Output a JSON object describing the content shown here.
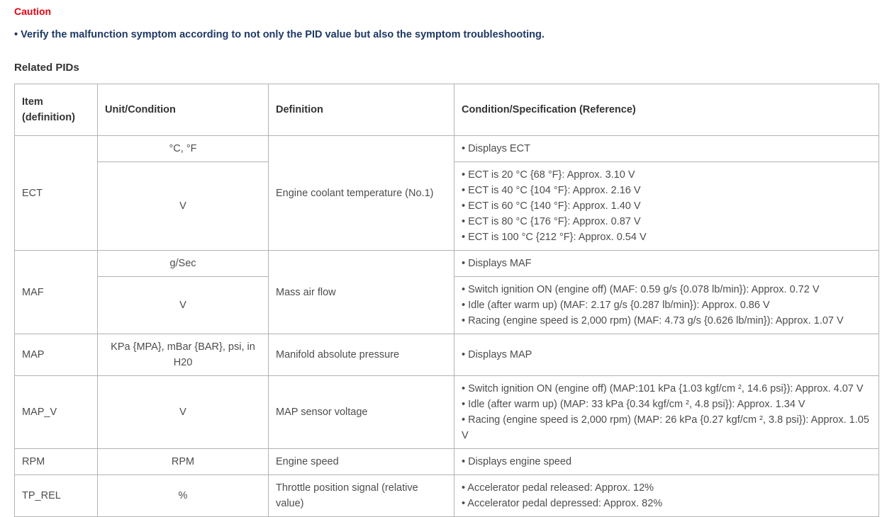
{
  "caution": {
    "title": "Caution",
    "note": "• Verify the malfunction symptom according to not only the PID value but also the symptom troubleshooting."
  },
  "section_title": "Related PIDs",
  "table": {
    "headers": {
      "item": "Item (definition)",
      "unit": "Unit/Condition",
      "definition": "Definition",
      "condition": "Condition/Specification (Reference)"
    },
    "rows": [
      {
        "item": "ECT",
        "definition": "Engine coolant temperature (No.1)",
        "subrows": [
          {
            "unit": "°C, °F",
            "conditions": [
              "• Displays ECT"
            ]
          },
          {
            "unit": "V",
            "conditions": [
              "• ECT is 20 °C {68 °F}: Approx. 3.10 V",
              "• ECT is 40 °C {104 °F}: Approx. 2.16 V",
              "• ECT is 60 °C {140 °F}: Approx. 1.40 V",
              "• ECT is 80 °C {176 °F}: Approx. 0.87 V",
              "• ECT is 100 °C {212 °F}: Approx. 0.54 V"
            ]
          }
        ]
      },
      {
        "item": "MAF",
        "definition": "Mass air flow",
        "subrows": [
          {
            "unit": "g/Sec",
            "conditions": [
              "• Displays MAF"
            ]
          },
          {
            "unit": "V",
            "conditions": [
              "• Switch ignition ON (engine off) (MAF: 0.59 g/s {0.078 lb/min}): Approx. 0.72 V",
              "• Idle (after warm up) (MAF: 2.17 g/s {0.287 lb/min}): Approx. 0.86 V",
              "• Racing (engine speed is 2,000 rpm) (MAF: 4.73 g/s {0.626 lb/min}): Approx. 1.07 V"
            ]
          }
        ]
      },
      {
        "item": "MAP",
        "definition": "Manifold absolute pressure",
        "subrows": [
          {
            "unit": "KPa {MPA}, mBar {BAR}, psi, in H20",
            "conditions": [
              "• Displays MAP"
            ]
          }
        ]
      },
      {
        "item": "MAP_V",
        "definition": "MAP sensor voltage",
        "subrows": [
          {
            "unit": "V",
            "conditions": [
              "• Switch ignition ON (engine off) (MAP:101 kPa {1.03 kgf/cm ², 14.6 psi}): Approx. 4.07 V",
              "• Idle (after warm up) (MAP: 33 kPa {0.34 kgf/cm ², 4.8 psi}): Approx. 1.34 V",
              "• Racing (engine speed is 2,000 rpm) (MAP: 26 kPa {0.27 kgf/cm ², 3.8 psi}): Approx. 1.05 V"
            ]
          }
        ]
      },
      {
        "item": "RPM",
        "definition": "Engine speed",
        "subrows": [
          {
            "unit": "RPM",
            "conditions": [
              "• Displays engine speed"
            ]
          }
        ]
      },
      {
        "item": "TP_REL",
        "definition": "Throttle position signal (relative value)",
        "subrows": [
          {
            "unit": "%",
            "conditions": [
              "• Accelerator pedal released: Approx. 12%",
              "• Accelerator pedal depressed: Approx. 82%"
            ]
          }
        ]
      }
    ]
  },
  "colors": {
    "caution_red": "#e60012",
    "note_blue": "#1f3864",
    "heading_text": "#333333",
    "body_text": "#4d4d4d",
    "table_border": "#b3b3b3"
  }
}
